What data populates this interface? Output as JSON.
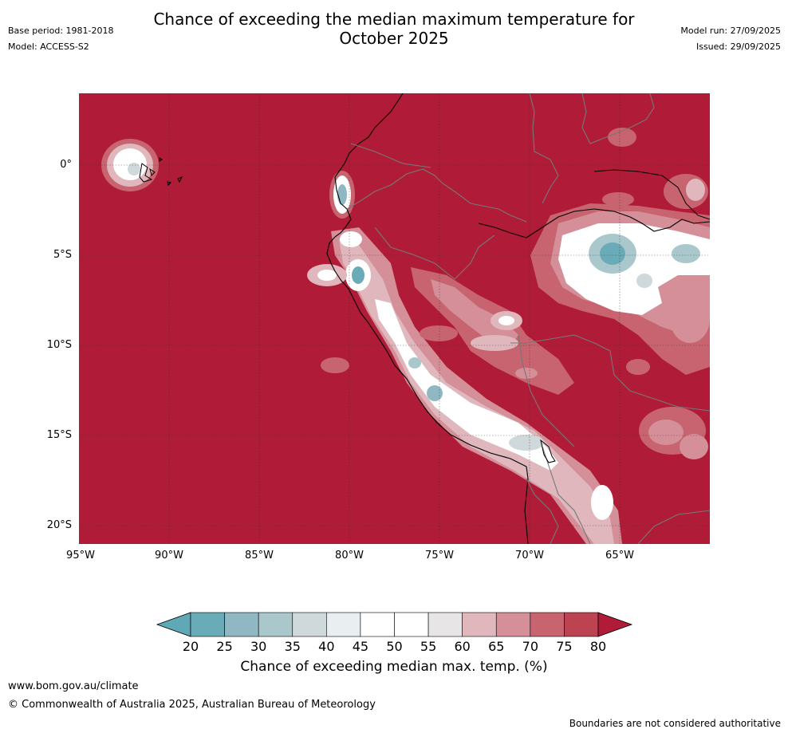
{
  "title_line1": "Chance of exceeding the median maximum temperature for",
  "title_line2": "October 2025",
  "meta_left": {
    "base_period": "Base period: 1981-2018",
    "model": "Model: ACCESS-S2"
  },
  "meta_right": {
    "model_run": "Model run: 27/09/2025",
    "issued": "Issued: 29/09/2025"
  },
  "map": {
    "lat_labels": [
      "0°",
      "5°S",
      "10°S",
      "15°S",
      "20°S"
    ],
    "lon_labels": [
      "95°W",
      "90°W",
      "85°W",
      "80°W",
      "75°W",
      "70°W",
      "65°W"
    ],
    "background_color": "#b01c37"
  },
  "colorbar": {
    "ticks": [
      "20",
      "25",
      "30",
      "35",
      "40",
      "45",
      "50",
      "55",
      "60",
      "65",
      "70",
      "75",
      "80"
    ],
    "colors": [
      "#5fa8b5",
      "#6aabb8",
      "#8fb8c3",
      "#aac8cc",
      "#cfd8da",
      "#e9eef0",
      "#ffffff",
      "#ffffff",
      "#e7e5e6",
      "#dfb7bd",
      "#d48f99",
      "#c7646f",
      "#bc4352",
      "#b01c37"
    ],
    "label": "Chance of exceeding median max. temp. (%)"
  },
  "footer": {
    "website": "www.bom.gov.au/climate",
    "copyright": "© Commonwealth of Australia 2025, Australian Bureau of Meteorology",
    "disclaimer": "Boundaries are not considered authoritative"
  }
}
